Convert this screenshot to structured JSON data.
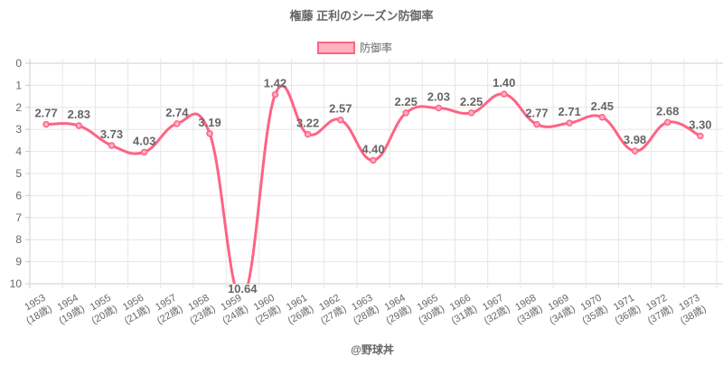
{
  "chart_data": {
    "type": "line",
    "title": "権藤 正利のシーズン防御率",
    "legend": {
      "label": "防御率",
      "placement": "top"
    },
    "categories": [
      "1953",
      "1954",
      "1955",
      "1956",
      "1957",
      "1958",
      "1959",
      "1960",
      "1961",
      "1962",
      "1963",
      "1964",
      "1965",
      "1966",
      "1967",
      "1968",
      "1969",
      "1970",
      "1971",
      "1972",
      "1973"
    ],
    "category_sublabels": [
      "(18歳)",
      "(19歳)",
      "(20歳)",
      "(21歳)",
      "(22歳)",
      "(23歳)",
      "(24歳)",
      "(25歳)",
      "(26歳)",
      "(27歳)",
      "(28歳)",
      "(29歳)",
      "(30歳)",
      "(31歳)",
      "(32歳)",
      "(33歳)",
      "(34歳)",
      "(35歳)",
      "(36歳)",
      "(37歳)",
      "(38歳)"
    ],
    "series": [
      {
        "name": "防御率",
        "values": [
          2.77,
          2.83,
          3.73,
          4.03,
          2.74,
          3.19,
          10.64,
          1.42,
          3.22,
          2.57,
          4.4,
          2.25,
          2.03,
          2.25,
          1.4,
          2.77,
          2.71,
          2.45,
          3.98,
          2.68,
          3.3
        ]
      }
    ],
    "value_labels": [
      "2.77",
      "2.83",
      "3.73",
      "4.03",
      "2.74",
      "3.19",
      "10.64",
      "1.42",
      "3.22",
      "2.57",
      "4.40",
      "2.25",
      "2.03",
      "2.25",
      "1.40",
      "2.77",
      "2.71",
      "2.45",
      "3.98",
      "2.68",
      "3.30"
    ],
    "ylim": [
      0,
      10
    ],
    "y_reversed": true,
    "y_ticks": [
      "0",
      "1",
      "2",
      "3",
      "4",
      "5",
      "6",
      "7",
      "8",
      "9",
      "10"
    ],
    "grid": true,
    "colors": {
      "line": "#ff6384",
      "fill": "#ffb1c1",
      "text": "#666666",
      "grid": "#e6e6e6"
    }
  },
  "footer": {
    "credit": "@野球丼"
  }
}
